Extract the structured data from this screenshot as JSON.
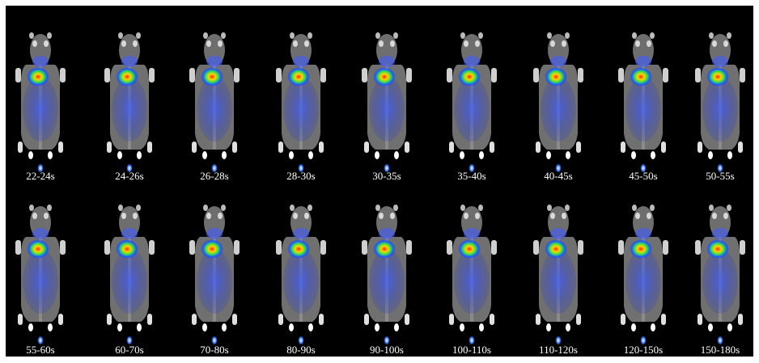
{
  "rows": [
    [
      "22-24s",
      "24-26s",
      "26-28s",
      "28-30s",
      "30-35s",
      "35-40s",
      "40-45s",
      "45-50s",
      "50-55s"
    ],
    [
      "55-60s",
      "60-70s",
      "70-80s",
      "80-90s",
      "90-100s",
      "100-110s",
      "110-120s",
      "120-150s",
      "150-180s"
    ]
  ]
}
